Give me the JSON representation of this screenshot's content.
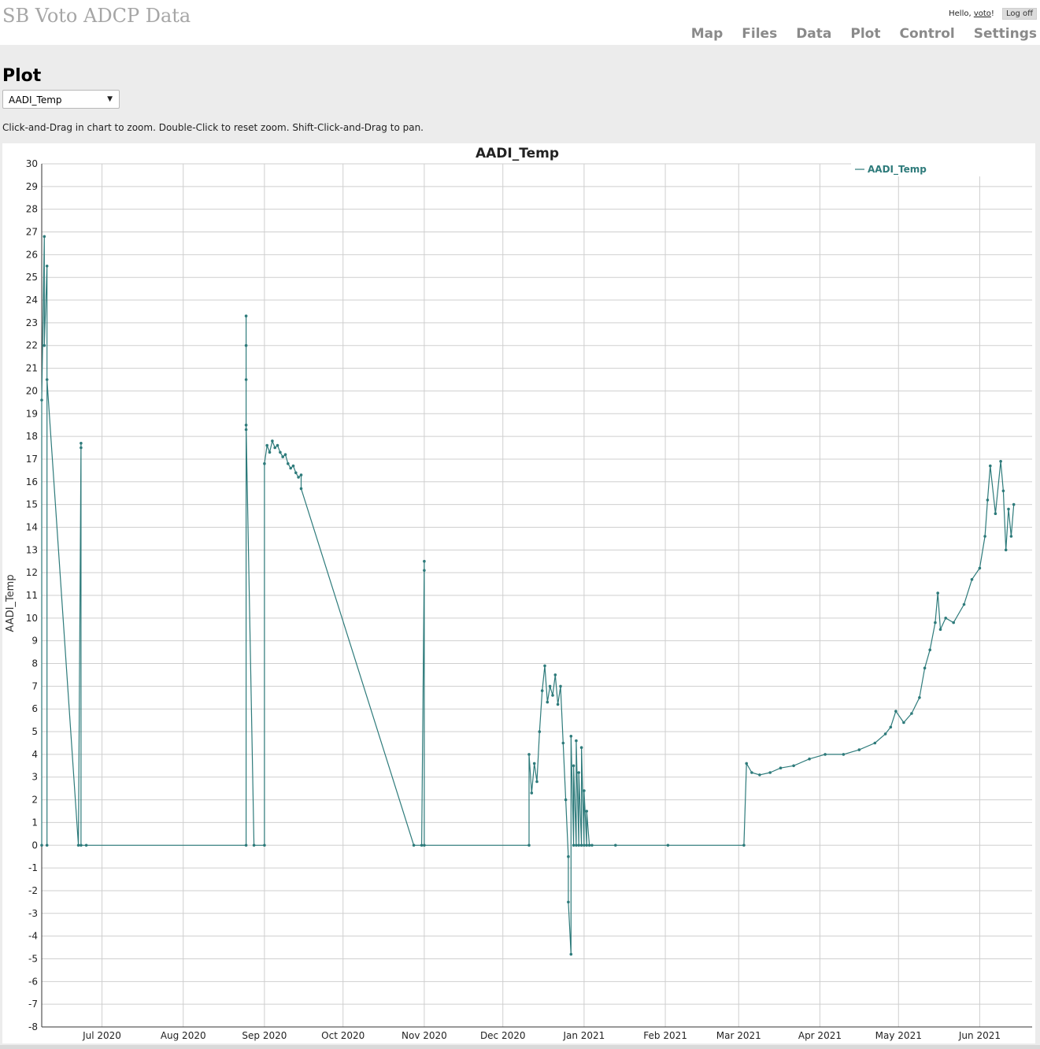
{
  "header": {
    "app_title": "SB Voto ADCP Data",
    "greeting_prefix": "Hello, ",
    "username": "voto",
    "greeting_suffix": "!",
    "logoff_label": "Log off",
    "nav": [
      {
        "label": "Map"
      },
      {
        "label": "Files"
      },
      {
        "label": "Data"
      },
      {
        "label": "Plot"
      },
      {
        "label": "Control"
      },
      {
        "label": "Settings"
      }
    ]
  },
  "page": {
    "title": "Plot",
    "variable_select": {
      "selected": "AADI_Temp"
    },
    "instructions": "Click-and-Drag in chart to zoom. Double-Click to reset zoom. Shift-Click-and-Drag to pan."
  },
  "colors": {
    "series": "#2e7b7b",
    "grid": "#cfcfcf"
  },
  "chart_data": {
    "type": "line",
    "title": "AADI_Temp",
    "xlabel": "",
    "ylabel": "AADI_Temp",
    "ylim": [
      -8,
      30
    ],
    "xlim": [
      "2020-06-08",
      "2021-06-21"
    ],
    "x_ticks": [
      {
        "date": "2020-07-01",
        "label": "Jul 2020"
      },
      {
        "date": "2020-08-01",
        "label": "Aug 2020"
      },
      {
        "date": "2020-09-01",
        "label": "Sep 2020"
      },
      {
        "date": "2020-10-01",
        "label": "Oct 2020"
      },
      {
        "date": "2020-11-01",
        "label": "Nov 2020"
      },
      {
        "date": "2020-12-01",
        "label": "Dec 2020"
      },
      {
        "date": "2021-01-01",
        "label": "Jan 2021"
      },
      {
        "date": "2021-02-01",
        "label": "Feb 2021"
      },
      {
        "date": "2021-03-01",
        "label": "Mar 2021"
      },
      {
        "date": "2021-04-01",
        "label": "Apr 2021"
      },
      {
        "date": "2021-05-01",
        "label": "May 2021"
      },
      {
        "date": "2021-06-01",
        "label": "Jun 2021"
      }
    ],
    "legend": {
      "position": "top-right",
      "entries": [
        "AADI_Temp"
      ]
    },
    "grid": true,
    "series": [
      {
        "name": "AADI_Temp",
        "points": [
          [
            "2020-06-08",
            0
          ],
          [
            "2020-06-08",
            19.6
          ],
          [
            "2020-06-09",
            26.8
          ],
          [
            "2020-06-09",
            22.0
          ],
          [
            "2020-06-10",
            25.5
          ],
          [
            "2020-06-10",
            0.0
          ],
          [
            "2020-06-10",
            20.5
          ],
          [
            "2020-06-22",
            0
          ],
          [
            "2020-06-23",
            17.7
          ],
          [
            "2020-06-23",
            17.5
          ],
          [
            "2020-06-23",
            0
          ],
          [
            "2020-06-25",
            0
          ],
          [
            "2020-08-25",
            0
          ],
          [
            "2020-08-25",
            18.3
          ],
          [
            "2020-08-25",
            20.5
          ],
          [
            "2020-08-25",
            23.3
          ],
          [
            "2020-08-25",
            22.0
          ],
          [
            "2020-08-25",
            18.5
          ],
          [
            "2020-08-28",
            0
          ],
          [
            "2020-09-01",
            0
          ],
          [
            "2020-09-01",
            16.8
          ],
          [
            "2020-09-02",
            17.6
          ],
          [
            "2020-09-03",
            17.3
          ],
          [
            "2020-09-04",
            17.8
          ],
          [
            "2020-09-05",
            17.5
          ],
          [
            "2020-09-06",
            17.6
          ],
          [
            "2020-09-07",
            17.3
          ],
          [
            "2020-09-08",
            17.1
          ],
          [
            "2020-09-09",
            17.2
          ],
          [
            "2020-09-10",
            16.8
          ],
          [
            "2020-09-11",
            16.6
          ],
          [
            "2020-09-12",
            16.7
          ],
          [
            "2020-09-13",
            16.4
          ],
          [
            "2020-09-14",
            16.2
          ],
          [
            "2020-09-15",
            16.3
          ],
          [
            "2020-09-15",
            15.7
          ],
          [
            "2020-10-28",
            0
          ],
          [
            "2020-10-31",
            0
          ],
          [
            "2020-11-01",
            12.5
          ],
          [
            "2020-11-01",
            12.1
          ],
          [
            "2020-11-01",
            0
          ],
          [
            "2020-12-11",
            0
          ],
          [
            "2020-12-11",
            4.0
          ],
          [
            "2020-12-12",
            2.3
          ],
          [
            "2020-12-13",
            3.6
          ],
          [
            "2020-12-14",
            2.8
          ],
          [
            "2020-12-15",
            5.0
          ],
          [
            "2020-12-16",
            6.8
          ],
          [
            "2020-12-17",
            7.9
          ],
          [
            "2020-12-18",
            6.3
          ],
          [
            "2020-12-19",
            7.0
          ],
          [
            "2020-12-20",
            6.6
          ],
          [
            "2020-12-21",
            7.5
          ],
          [
            "2020-12-22",
            6.2
          ],
          [
            "2020-12-23",
            7.0
          ],
          [
            "2020-12-24",
            4.5
          ],
          [
            "2020-12-25",
            2.0
          ],
          [
            "2020-12-26",
            -0.5
          ],
          [
            "2020-12-26",
            -2.5
          ],
          [
            "2020-12-27",
            -4.8
          ],
          [
            "2020-12-27",
            4.8
          ],
          [
            "2020-12-28",
            0
          ],
          [
            "2020-12-28",
            3.5
          ],
          [
            "2020-12-29",
            0
          ],
          [
            "2020-12-29",
            4.6
          ],
          [
            "2020-12-30",
            0
          ],
          [
            "2020-12-30",
            3.2
          ],
          [
            "2020-12-31",
            0
          ],
          [
            "2020-12-31",
            4.3
          ],
          [
            "2021-01-01",
            0
          ],
          [
            "2021-01-01",
            2.4
          ],
          [
            "2021-01-02",
            0
          ],
          [
            "2021-01-02",
            1.5
          ],
          [
            "2021-01-03",
            0
          ],
          [
            "2021-01-04",
            0
          ],
          [
            "2021-01-13",
            0
          ],
          [
            "2021-02-02",
            0
          ],
          [
            "2021-03-03",
            0
          ],
          [
            "2021-03-04",
            3.6
          ],
          [
            "2021-03-06",
            3.2
          ],
          [
            "2021-03-09",
            3.1
          ],
          [
            "2021-03-13",
            3.2
          ],
          [
            "2021-03-17",
            3.4
          ],
          [
            "2021-03-22",
            3.5
          ],
          [
            "2021-03-28",
            3.8
          ],
          [
            "2021-04-03",
            4.0
          ],
          [
            "2021-04-10",
            4.0
          ],
          [
            "2021-04-16",
            4.2
          ],
          [
            "2021-04-22",
            4.5
          ],
          [
            "2021-04-26",
            4.9
          ],
          [
            "2021-04-28",
            5.2
          ],
          [
            "2021-04-30",
            5.9
          ],
          [
            "2021-05-03",
            5.4
          ],
          [
            "2021-05-06",
            5.8
          ],
          [
            "2021-05-09",
            6.5
          ],
          [
            "2021-05-11",
            7.8
          ],
          [
            "2021-05-13",
            8.6
          ],
          [
            "2021-05-15",
            9.8
          ],
          [
            "2021-05-16",
            11.1
          ],
          [
            "2021-05-17",
            9.5
          ],
          [
            "2021-05-19",
            10.0
          ],
          [
            "2021-05-22",
            9.8
          ],
          [
            "2021-05-26",
            10.6
          ],
          [
            "2021-05-29",
            11.7
          ],
          [
            "2021-06-01",
            12.2
          ],
          [
            "2021-06-03",
            13.6
          ],
          [
            "2021-06-04",
            15.2
          ],
          [
            "2021-06-05",
            16.7
          ],
          [
            "2021-06-07",
            14.6
          ],
          [
            "2021-06-09",
            16.9
          ],
          [
            "2021-06-10",
            15.6
          ],
          [
            "2021-06-11",
            13.0
          ],
          [
            "2021-06-12",
            14.8
          ],
          [
            "2021-06-13",
            13.6
          ],
          [
            "2021-06-14",
            15.0
          ]
        ]
      }
    ]
  }
}
